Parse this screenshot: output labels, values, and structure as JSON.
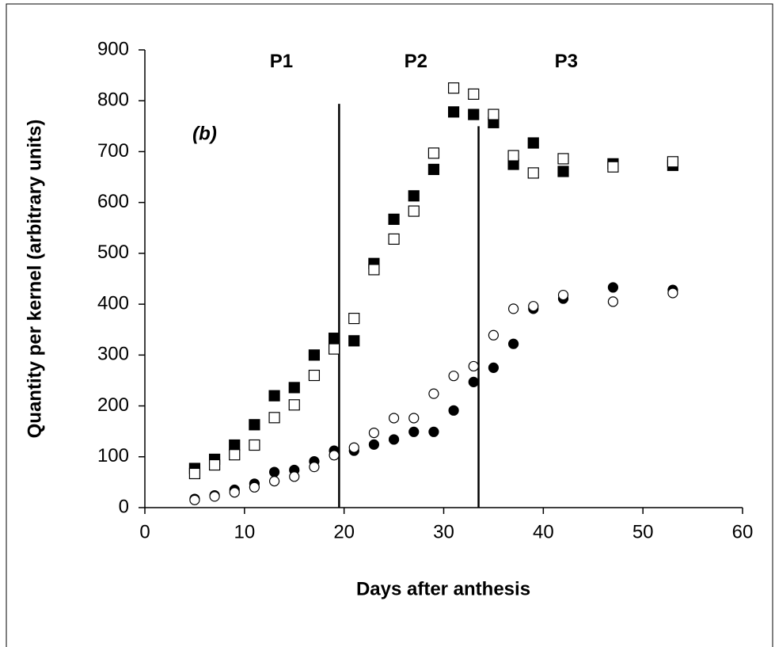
{
  "chart_data": {
    "type": "scatter",
    "x_label": "Days after anthesis",
    "y_label": "Quantity per kernel  (arbitrary units)",
    "xlim": [
      0,
      60
    ],
    "xticks": [
      0,
      10,
      20,
      30,
      40,
      50,
      60
    ],
    "ylim": [
      0,
      900
    ],
    "yticks": [
      0,
      100,
      200,
      300,
      400,
      500,
      600,
      700,
      800,
      900
    ],
    "x": [
      5,
      7,
      9,
      11,
      13,
      15,
      17,
      19,
      21,
      23,
      25,
      27,
      29,
      31,
      33,
      35,
      37,
      39,
      42,
      47,
      53
    ],
    "series": [
      {
        "marker": "square",
        "filled": true,
        "color": "#000000",
        "values": [
          77,
          95,
          123,
          163,
          220,
          236,
          300,
          333,
          328,
          480,
          567,
          613,
          665,
          778,
          773,
          757,
          675,
          717,
          661,
          676,
          673
        ]
      },
      {
        "marker": "square",
        "filled": false,
        "color": "#000000",
        "values": [
          67,
          84,
          104,
          123,
          177,
          202,
          260,
          312,
          372,
          468,
          528,
          583,
          697,
          825,
          813,
          773,
          692,
          658,
          686,
          670,
          680
        ]
      },
      {
        "marker": "circle",
        "filled": true,
        "color": "#000000",
        "values": [
          17,
          24,
          35,
          47,
          70,
          74,
          91,
          112,
          112,
          124,
          134,
          149,
          149,
          191,
          247,
          275,
          322,
          391,
          411,
          433,
          428
        ]
      },
      {
        "marker": "circle",
        "filled": false,
        "color": "#000000",
        "values": [
          15,
          22,
          30,
          40,
          52,
          61,
          80,
          103,
          118,
          147,
          176,
          176,
          224,
          259,
          278,
          339,
          391,
          396,
          418,
          405,
          422
        ]
      }
    ],
    "vlines": [
      {
        "x": 19.5,
        "top": 794
      },
      {
        "x": 33.5,
        "top": 750
      }
    ],
    "annotations": [
      {
        "text": "P1",
        "x": 13.7,
        "y": 876
      },
      {
        "text": "P2",
        "x": 27.2,
        "y": 876
      },
      {
        "text": "P3",
        "x": 42.3,
        "y": 876
      },
      {
        "text": "(b)",
        "x": 6,
        "y": 733
      }
    ]
  }
}
